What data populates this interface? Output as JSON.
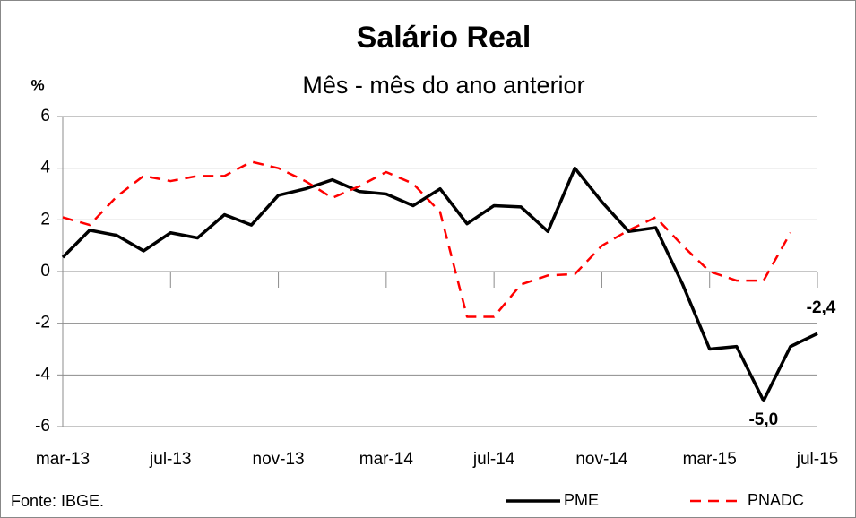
{
  "chart_data": {
    "type": "line",
    "title": "Salário Real",
    "subtitle": "Mês - mês do ano anterior",
    "y_label": "%",
    "source": "Fonte: IBGE.",
    "categories": [
      "mar-13",
      null,
      null,
      null,
      "jul-13",
      null,
      null,
      null,
      "nov-13",
      null,
      null,
      null,
      "mar-14",
      null,
      null,
      null,
      "jul-14",
      null,
      null,
      null,
      "nov-14",
      null,
      null,
      null,
      "mar-15",
      null,
      null,
      null,
      "jul-15"
    ],
    "series": [
      {
        "name": "PME",
        "color": "#000000",
        "dash": false,
        "values": [
          0.55,
          1.6,
          1.4,
          0.8,
          1.5,
          1.3,
          2.2,
          1.8,
          2.95,
          3.2,
          3.55,
          3.1,
          3.0,
          2.55,
          3.2,
          1.85,
          2.55,
          2.5,
          1.55,
          4.0,
          2.7,
          1.55,
          1.7,
          -0.5,
          -3.0,
          -2.9,
          -5.0,
          -2.9,
          -2.4
        ],
        "value_labels": [
          null,
          null,
          null,
          null,
          null,
          null,
          null,
          null,
          null,
          null,
          null,
          null,
          null,
          null,
          null,
          null,
          null,
          null,
          null,
          null,
          null,
          null,
          null,
          null,
          null,
          null,
          "-5,0",
          null,
          "-2,4"
        ]
      },
      {
        "name": "PNADC",
        "color": "#ff0000",
        "dash": true,
        "values": [
          2.1,
          1.8,
          2.9,
          3.7,
          3.5,
          3.7,
          3.7,
          4.25,
          4.0,
          3.5,
          2.85,
          3.3,
          3.85,
          3.4,
          2.3,
          -1.75,
          -1.75,
          -0.5,
          -0.15,
          -0.1,
          1.0,
          1.6,
          2.1,
          1.0,
          0.0,
          -0.35,
          -0.35,
          1.5,
          null
        ]
      }
    ],
    "ylim": [
      -6,
      6
    ],
    "yticks": [
      -6,
      -4,
      -2,
      0,
      2,
      4,
      6
    ],
    "grid": true,
    "legend": "bottom-right"
  }
}
